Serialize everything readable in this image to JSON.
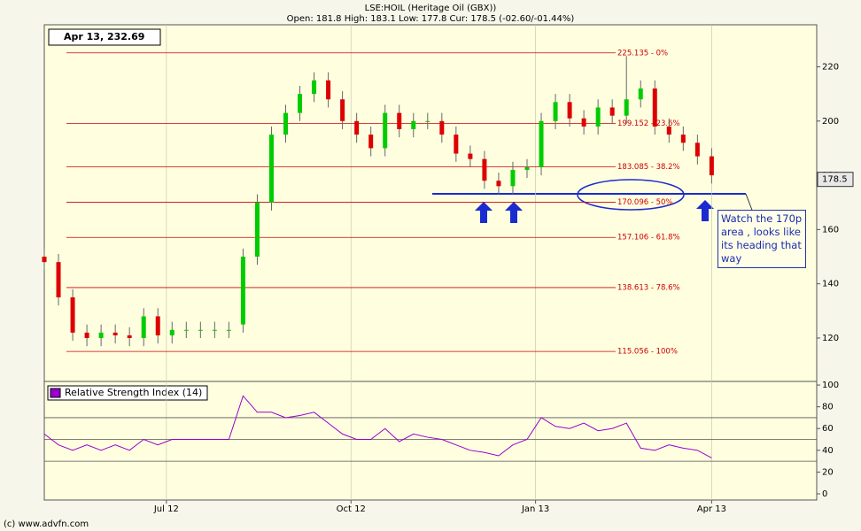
{
  "header": {
    "title": "LSE:HOIL (Heritage Oil (GBX))",
    "quote": "Open: 181.8 High: 183.1 Low: 177.8 Cur: 178.5 (-02.60/-01.44%)"
  },
  "date_box": "Apr 13, 232.69",
  "footer": "(c) www.advfn.com",
  "chart_data": [
    {
      "type": "candlestick",
      "x": [
        0,
        5,
        10,
        15,
        20,
        25,
        30,
        35,
        40,
        45,
        50,
        55,
        60,
        65,
        70,
        75,
        80,
        85,
        90,
        95,
        100,
        105,
        110,
        115,
        120,
        125,
        130,
        135,
        140,
        145,
        150,
        155,
        160,
        165,
        170,
        175,
        180,
        185,
        190,
        195,
        200,
        205,
        210,
        215,
        220,
        225,
        230,
        235
      ],
      "open": [
        150,
        148,
        135,
        122,
        120,
        122,
        121,
        120,
        128,
        121,
        123,
        123,
        123,
        123,
        125,
        150,
        170,
        195,
        203,
        210,
        215,
        208,
        200,
        195,
        190,
        203,
        197,
        200,
        200,
        195,
        188,
        186,
        178,
        176,
        182,
        183,
        200,
        207,
        201,
        198,
        205,
        202,
        208,
        212,
        198,
        195,
        192,
        187
      ],
      "high": [
        153,
        151,
        138,
        125,
        125,
        125,
        124,
        131,
        131,
        126,
        126,
        126,
        126,
        126,
        153,
        173,
        198,
        206,
        213,
        218,
        218,
        211,
        203,
        198,
        206,
        206,
        203,
        203,
        203,
        198,
        191,
        189,
        181,
        185,
        186,
        203,
        210,
        210,
        204,
        208,
        208,
        224,
        215,
        215,
        201,
        198,
        195,
        190
      ],
      "low": [
        145,
        132,
        119,
        117,
        117,
        118,
        117,
        117,
        118,
        118,
        120,
        120,
        120,
        120,
        122,
        147,
        167,
        192,
        200,
        207,
        205,
        197,
        192,
        187,
        187,
        194,
        194,
        197,
        192,
        185,
        183,
        175,
        173,
        173,
        179,
        180,
        197,
        198,
        195,
        195,
        199,
        199,
        205,
        195,
        192,
        189,
        184,
        177
      ],
      "close": [
        148,
        135,
        122,
        120,
        122,
        121,
        120,
        128,
        121,
        123,
        123,
        123,
        123,
        123,
        150,
        170,
        195,
        203,
        210,
        215,
        208,
        200,
        195,
        190,
        203,
        197,
        200,
        200,
        195,
        188,
        186,
        178,
        176,
        182,
        183,
        200,
        207,
        201,
        198,
        205,
        202,
        208,
        212,
        198,
        195,
        192,
        187,
        180
      ],
      "up_color": "#00cc00",
      "down_color": "#dd0000",
      "xlim": [
        0,
        272
      ],
      "ylim": [
        104,
        235.5
      ],
      "yticks": [
        120,
        140,
        160,
        180,
        200,
        220
      ],
      "fib_color": "#cc0000",
      "fib_levels": [
        {
          "value": 225.135,
          "label": "225.135 - 0%"
        },
        {
          "value": 199.152,
          "label": "199.152 - 23.6%"
        },
        {
          "value": 183.085,
          "label": "183.085 - 38.2%"
        },
        {
          "value": 170.096,
          "label": "170.096 - 50%"
        },
        {
          "value": 157.106,
          "label": "157.106 - 61.8%"
        },
        {
          "value": 138.613,
          "label": "138.613 - 78.6%"
        },
        {
          "value": 115.056,
          "label": "115.056 - 100%"
        }
      ],
      "current_price": 178.5,
      "annotation": "Watch the 170p area , looks like its heading that way"
    },
    {
      "type": "line",
      "title": "Relative Strength Index (14)",
      "color": "#9900cc",
      "x": [
        0,
        5,
        10,
        15,
        20,
        25,
        30,
        35,
        40,
        45,
        50,
        55,
        60,
        65,
        70,
        75,
        80,
        85,
        90,
        95,
        100,
        105,
        110,
        115,
        120,
        125,
        130,
        135,
        140,
        145,
        150,
        155,
        160,
        165,
        170,
        175,
        180,
        185,
        190,
        195,
        200,
        205,
        210,
        215,
        220,
        225,
        230,
        235
      ],
      "values": [
        55,
        45,
        40,
        45,
        40,
        45,
        40,
        50,
        45,
        50,
        50,
        50,
        50,
        50,
        90,
        75,
        75,
        70,
        72,
        75,
        65,
        55,
        50,
        50,
        60,
        48,
        55,
        52,
        50,
        45,
        40,
        38,
        35,
        45,
        50,
        70,
        62,
        60,
        65,
        58,
        60,
        65,
        42,
        40,
        45,
        42,
        40,
        33
      ],
      "xlim": [
        0,
        272
      ],
      "xticks": [
        {
          "value": 43,
          "label": "Jul 12"
        },
        {
          "value": 108,
          "label": "Oct 12"
        },
        {
          "value": 173,
          "label": "Jan 13"
        },
        {
          "value": 235,
          "label": "Apr 13"
        }
      ],
      "ylim": [
        -5.7,
        103.3
      ],
      "yticks": [
        0,
        20,
        40,
        60,
        80,
        100
      ],
      "levels": [
        30,
        50,
        70
      ]
    }
  ]
}
